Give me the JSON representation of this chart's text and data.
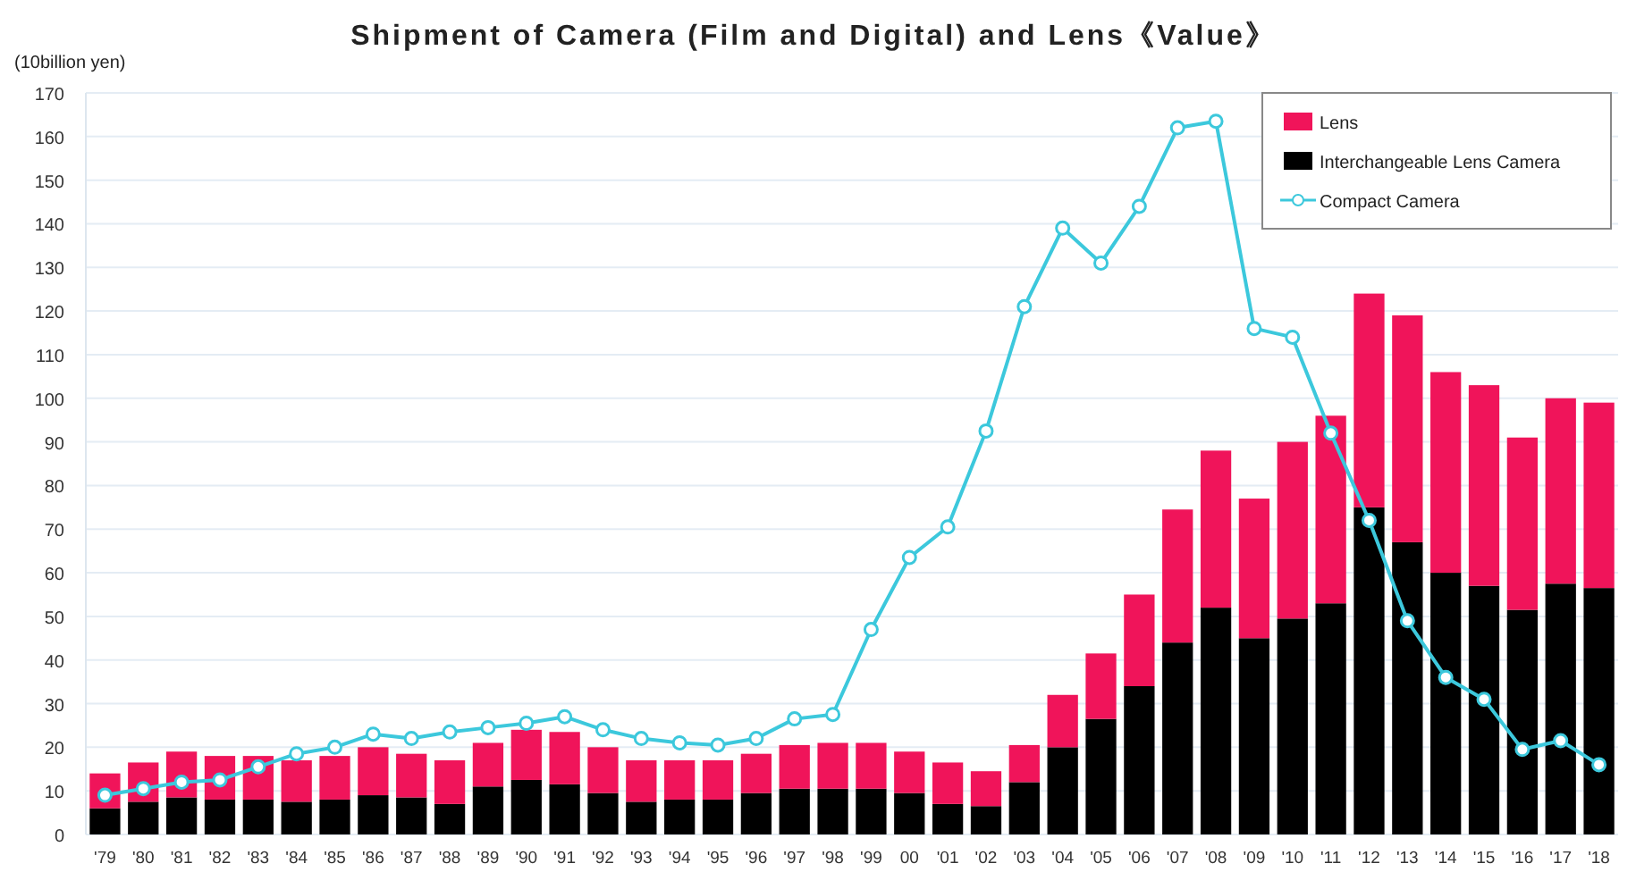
{
  "chart_data": {
    "type": "bar",
    "stacked": true,
    "title": "Shipment of Camera (Film and Digital) and Lens《Value》",
    "ylabel": "(10billion yen)",
    "categories": [
      "'79",
      "'80",
      "'81",
      "'82",
      "'83",
      "'84",
      "'85",
      "'86",
      "'87",
      "'88",
      "'89",
      "'90",
      "'91",
      "'92",
      "'93",
      "'94",
      "'95",
      "'96",
      "'97",
      "'98",
      "'99",
      "00",
      "'01",
      "'02",
      "'03",
      "'04",
      "'05",
      "'06",
      "'07",
      "'08",
      "'09",
      "'10",
      "'11",
      "'12",
      "'13",
      "'14",
      "'15",
      "'16",
      "'17",
      "'18"
    ],
    "series": [
      {
        "name": "Interchangeable Lens Camera",
        "color": "#000000",
        "values": [
          6,
          7.5,
          8.5,
          8,
          8,
          7.5,
          8,
          9,
          8.5,
          7,
          11,
          12.5,
          11.5,
          9.5,
          7.5,
          8,
          8,
          9.5,
          10.5,
          10.5,
          10.5,
          9.5,
          7,
          6.5,
          12,
          20,
          26.5,
          34,
          44,
          52,
          45,
          49.5,
          53,
          75,
          67,
          60,
          57,
          51.5,
          57.5,
          56.5
        ]
      },
      {
        "name": "Lens",
        "color": "#f0145a",
        "values": [
          8,
          9,
          10.5,
          10,
          10,
          9.5,
          10,
          11,
          10,
          10,
          10,
          11.5,
          12,
          10.5,
          9.5,
          9,
          9,
          9,
          10,
          10.5,
          10.5,
          9.5,
          9.5,
          8,
          8.5,
          12,
          15,
          21,
          30.5,
          36,
          32,
          40.5,
          43,
          49,
          52,
          46,
          46,
          39.5,
          42.5,
          42.5
        ]
      },
      {
        "name": "Compact Camera",
        "type": "line",
        "color": "#3cc8dc",
        "marker": "circle",
        "values": [
          9,
          10.5,
          12,
          12.5,
          15.5,
          18.5,
          20,
          23,
          22,
          23.5,
          24.5,
          25.5,
          27,
          24,
          22,
          21,
          20.5,
          22,
          26.5,
          27.5,
          47,
          63.5,
          70.5,
          92.5,
          121,
          139,
          131,
          144,
          162,
          163.5,
          116,
          114,
          92,
          72,
          49,
          36,
          31,
          19.5,
          21.5,
          16
        ]
      }
    ],
    "ylim": [
      0,
      170
    ],
    "yticks": [
      0,
      10,
      20,
      30,
      40,
      50,
      60,
      70,
      80,
      90,
      100,
      110,
      120,
      130,
      140,
      150,
      160,
      170
    ],
    "grid": "y",
    "legend": "top right"
  }
}
